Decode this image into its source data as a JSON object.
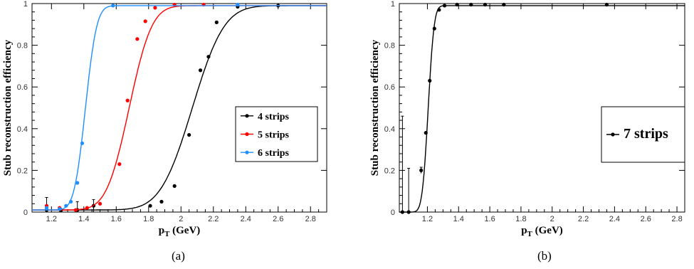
{
  "chart_data": [
    {
      "type": "scatter",
      "xlabel": "p_T (GeV)",
      "xlabel_main": "p",
      "xlabel_sub": "T",
      "xlabel_unit": " (GeV)",
      "ylabel": "Stub reconstruction efficiency",
      "xlim": [
        1.08,
        2.9
      ],
      "ylim": [
        0,
        1.0
      ],
      "xticks": [
        "1.2",
        "1.4",
        "1.6",
        "1.8",
        "2",
        "2.2",
        "2.4",
        "2.6",
        "2.8"
      ],
      "yticks": [
        "0",
        "0.2",
        "0.4",
        "0.6",
        "0.8",
        "1"
      ],
      "legend_position": "right-middle",
      "caption": "(a)",
      "series": [
        {
          "name": "4 strips",
          "color": "#000000",
          "fit": {
            "plateau": 0.99,
            "floor": 0.01,
            "mu": 2.07,
            "sigma": 0.155
          },
          "points": [
            [
              1.17,
              0.01
            ],
            [
              1.26,
              0.01
            ],
            [
              1.36,
              0.01
            ],
            [
              1.46,
              0.03
            ],
            [
              1.81,
              0.03
            ],
            [
              1.88,
              0.05
            ],
            [
              1.96,
              0.125
            ],
            [
              2.05,
              0.37
            ],
            [
              2.12,
              0.68
            ],
            [
              2.17,
              0.745
            ],
            [
              2.22,
              0.91
            ],
            [
              2.35,
              0.985
            ],
            [
              2.6,
              0.99
            ]
          ],
          "errors": [
            0.06,
            0.0,
            0.04,
            0.03,
            0,
            0,
            0,
            0,
            0,
            0,
            0,
            0,
            0
          ]
        },
        {
          "name": "5 strips",
          "color": "#ff0000",
          "fit": {
            "plateau": 0.99,
            "floor": 0.01,
            "mu": 1.68,
            "sigma": 0.11
          },
          "points": [
            [
              1.17,
              0.03
            ],
            [
              1.25,
              0.02
            ],
            [
              1.35,
              0.01
            ],
            [
              1.42,
              0.02
            ],
            [
              1.5,
              0.04
            ],
            [
              1.62,
              0.23
            ],
            [
              1.67,
              0.535
            ],
            [
              1.73,
              0.83
            ],
            [
              1.78,
              0.915
            ],
            [
              1.84,
              0.98
            ],
            [
              1.96,
              0.995
            ],
            [
              2.14,
              0.995
            ]
          ],
          "errors": [
            0,
            0,
            0,
            0,
            0,
            0,
            0,
            0,
            0,
            0,
            0,
            0
          ]
        },
        {
          "name": "6 strips",
          "color": "#1f8fff",
          "fit": {
            "plateau": 0.99,
            "floor": 0.01,
            "mu": 1.41,
            "sigma": 0.055
          },
          "points": [
            [
              1.17,
              0.02
            ],
            [
              1.25,
              0.015
            ],
            [
              1.29,
              0.03
            ],
            [
              1.32,
              0.05
            ],
            [
              1.36,
              0.14
            ],
            [
              1.39,
              0.33
            ],
            [
              1.58,
              0.99
            ],
            [
              2.35,
              0.995
            ]
          ],
          "errors": [
            0,
            0,
            0,
            0,
            0,
            0,
            0,
            0
          ]
        }
      ]
    },
    {
      "type": "scatter",
      "xlabel": "p_T (GeV)",
      "xlabel_main": "p",
      "xlabel_sub": "T",
      "xlabel_unit": " (GeV)",
      "ylabel": "Stub reconstruction efficiency",
      "xlim": [
        1.02,
        2.85
      ],
      "ylim": [
        0,
        1.0
      ],
      "xticks": [
        "1.2",
        "1.4",
        "1.6",
        "1.8",
        "2",
        "2.2",
        "2.4",
        "2.6",
        "2.8"
      ],
      "yticks": [
        "0",
        "0.2",
        "0.4",
        "0.6",
        "0.8",
        "1"
      ],
      "legend_position": "right-middle",
      "caption": "(b)",
      "series": [
        {
          "name": "7 strips",
          "color": "#000000",
          "fit": {
            "plateau": 0.99,
            "floor": 0.0,
            "mu": 1.205,
            "sigma": 0.03
          },
          "points": [
            [
              1.04,
              0.0
            ],
            [
              1.08,
              0.0
            ],
            [
              1.16,
              0.2
            ],
            [
              1.19,
              0.38
            ],
            [
              1.215,
              0.63
            ],
            [
              1.245,
              0.88
            ],
            [
              1.275,
              0.97
            ],
            [
              1.31,
              0.99
            ],
            [
              1.39,
              0.995
            ],
            [
              1.48,
              0.995
            ],
            [
              1.57,
              0.995
            ],
            [
              1.69,
              0.995
            ],
            [
              2.35,
              0.995
            ]
          ],
          "errors": [
            0.46,
            0.21,
            0.015,
            0,
            0,
            0,
            0,
            0,
            0,
            0,
            0,
            0,
            0
          ]
        }
      ]
    }
  ]
}
